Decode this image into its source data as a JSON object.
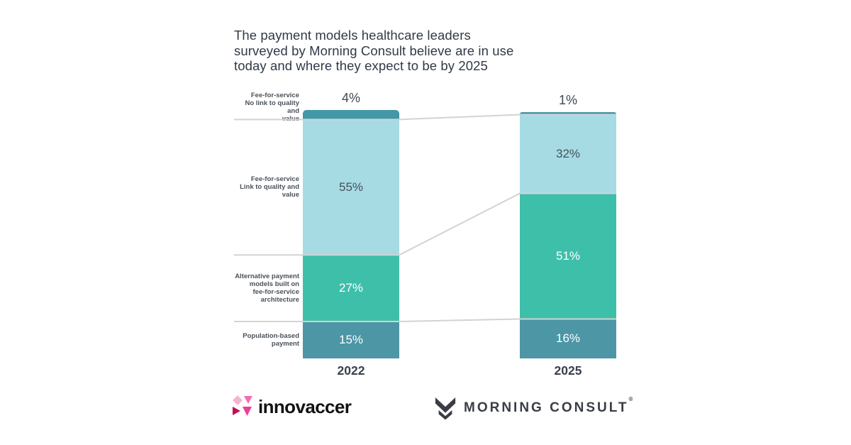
{
  "title_lines": [
    "The payment models healthcare leaders",
    "surveyed by Morning Consult believe are in use",
    "today and where they expect to be by 2025"
  ],
  "chart_data": {
    "type": "bar",
    "stacked": true,
    "title": "The payment models healthcare leaders surveyed by Morning Consult believe are in use today and where they expect to be by 2025",
    "categories": [
      "2022",
      "2025"
    ],
    "value_suffix": "%",
    "ylim": [
      0,
      100
    ],
    "grid": "boundary-connector-lines",
    "legend_position": "left-category-labels",
    "segments": [
      {
        "label": "Fee-for-service No link to quality and value",
        "label_lines": [
          "Fee-for-service",
          "No link to quality and",
          "value"
        ],
        "color": "#4297A9",
        "values": [
          4,
          1
        ],
        "value_label_position": "above-bar",
        "value_label_color": "#3F4853"
      },
      {
        "label": "Fee-for-service Link to quality and value",
        "label_lines": [
          "Fee-for-service",
          "Link to quality and",
          "value"
        ],
        "color": "#A6DBE4",
        "values": [
          55,
          32
        ],
        "value_label_position": "inside",
        "value_label_color": "#465059"
      },
      {
        "label": "Alternative payment models built on fee-for-service architecture",
        "label_lines": [
          "Alternative payment",
          "models built on",
          "fee-for-service",
          "architecture"
        ],
        "color": "#3EBFAA",
        "values": [
          27,
          51
        ],
        "value_label_position": "inside",
        "value_label_color": "#FFFFFF"
      },
      {
        "label": "Population-based payment",
        "label_lines": [
          "Population-based",
          "payment"
        ],
        "color": "#4C96A6",
        "values": [
          15,
          16
        ],
        "value_label_position": "inside",
        "value_label_color": "#FFFFFF"
      }
    ]
  },
  "colors": {
    "background": "#FFFFFF",
    "title_text": "#2F3A47",
    "category_label_text": "#4A525B",
    "year_label_text": "#39414D",
    "grid_line": "#D3D3D3",
    "innovaccer_text": "#121212",
    "innovaccer_pink_light": "#F7B2D4",
    "innovaccer_pink_medium": "#F06EB0",
    "innovaccer_crimson": "#C40D57",
    "innovaccer_pink_hot": "#EE3D96",
    "morning_consult": "#3A3D45"
  },
  "logos": {
    "innovaccer_text": "innovaccer",
    "innovaccer_icon": "pink-triangles-mark",
    "morning_consult_text": "MORNING CONSULT",
    "morning_consult_icon": "m-chevron-mark",
    "registered_mark": "®"
  }
}
